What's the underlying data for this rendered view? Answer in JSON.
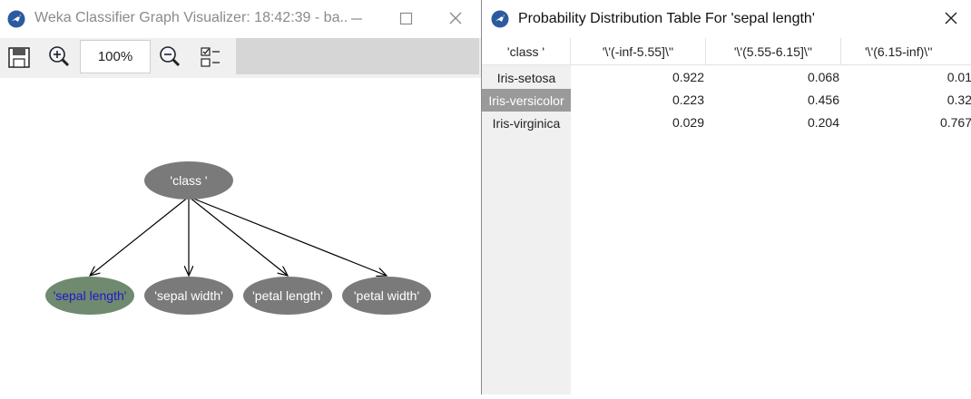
{
  "graph_window": {
    "title": "Weka Classifier Graph Visualizer: 18:42:39 - ba..",
    "app_icon": "weka-bird-icon",
    "controls": {
      "minimize_icon": "minimize-icon",
      "maximize_icon": "maximize-icon",
      "close_icon": "close-icon"
    },
    "toolbar": {
      "save_icon": "save-icon",
      "zoom_in_icon": "zoom-in-icon",
      "zoom_level": "100%",
      "zoom_out_icon": "zoom-out-icon",
      "layout_icon": "layout-options-icon"
    },
    "graph": {
      "nodes": [
        {
          "id": "class",
          "label": "'class '",
          "selected": false
        },
        {
          "id": "sepal_length",
          "label": "'sepal length'",
          "selected": true
        },
        {
          "id": "sepal_width",
          "label": "'sepal width'",
          "selected": false
        },
        {
          "id": "petal_length",
          "label": "'petal length'",
          "selected": false
        },
        {
          "id": "petal_width",
          "label": "'petal width'",
          "selected": false
        }
      ],
      "edges": [
        {
          "from": "class",
          "to": "sepal_length"
        },
        {
          "from": "class",
          "to": "sepal_width"
        },
        {
          "from": "class",
          "to": "petal_length"
        },
        {
          "from": "class",
          "to": "petal_width"
        }
      ],
      "colors": {
        "node_fill": "#7a7a7a",
        "selected_fill": "#6f8a6f",
        "node_text": "#ffffff",
        "selected_text": "#1a1acc",
        "edge": "#000000"
      }
    }
  },
  "table_window": {
    "title": "Probability Distribution Table For 'sepal length'",
    "app_icon": "weka-bird-icon",
    "close_icon": "close-icon",
    "table": {
      "columns": [
        "'class '",
        "'\\'(-inf-5.55]\\''",
        "'\\'(5.55-6.15]\\''",
        "'\\'(6.15-inf)\\''"
      ],
      "rows": [
        {
          "label": "Iris-setosa",
          "values": [
            "0.922",
            "0.068",
            "0.01"
          ],
          "selected": false
        },
        {
          "label": "Iris-versicolor",
          "values": [
            "0.223",
            "0.456",
            "0.32"
          ],
          "selected": true
        },
        {
          "label": "Iris-virginica",
          "values": [
            "0.029",
            "0.204",
            "0.767"
          ],
          "selected": false
        }
      ]
    }
  }
}
